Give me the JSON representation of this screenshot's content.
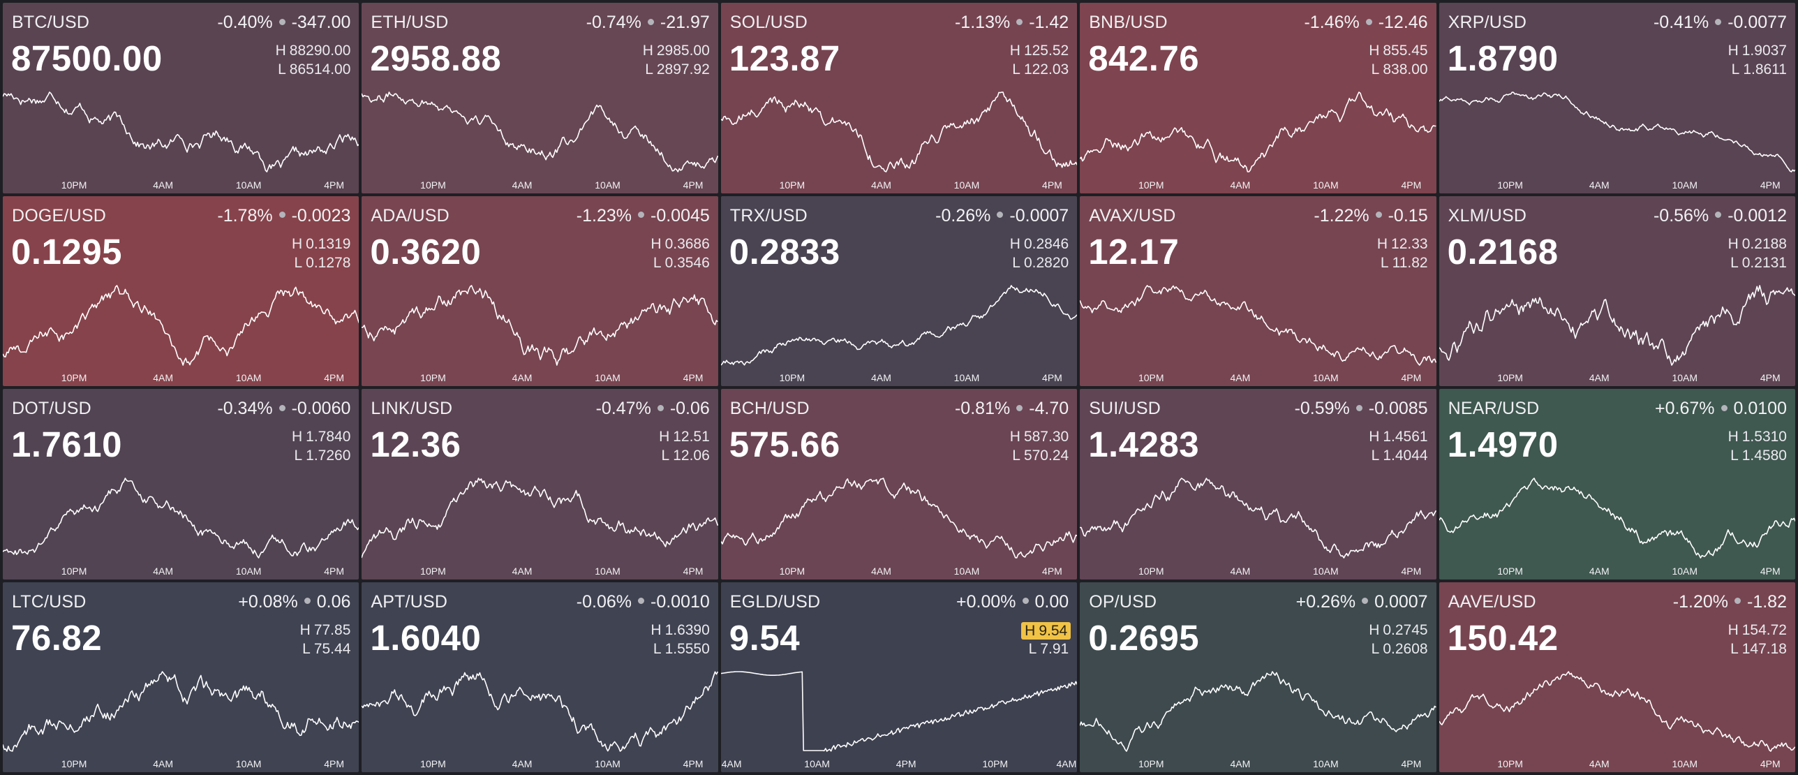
{
  "colors": {
    "page_background": "#1e1f24",
    "tile_neutral": "#4e4658",
    "tile_down": "#7c4550",
    "tile_strong_down": "#87434b",
    "tile_flat": "#3e4150",
    "tile_up": "#3e5650",
    "high_flag": "#f0c246"
  },
  "tiles": [
    {
      "symbol": "BTC/USD",
      "change_pct": "-0.40%",
      "change_abs": "-347.00",
      "price": "87500.00",
      "high": "88290.00",
      "low": "86514.00",
      "color": "#5a4452",
      "ticks": [
        "10PM",
        "4AM",
        "10AM",
        "4PM"
      ]
    },
    {
      "symbol": "ETH/USD",
      "change_pct": "-0.74%",
      "change_abs": "-21.97",
      "price": "2958.88",
      "high": "2985.00",
      "low": "2897.92",
      "color": "#674754",
      "ticks": [
        "10PM",
        "4AM",
        "10AM",
        "4PM"
      ]
    },
    {
      "symbol": "SOL/USD",
      "change_pct": "-1.13%",
      "change_abs": "-1.42",
      "price": "123.87",
      "high": "125.52",
      "low": "122.03",
      "color": "#764451",
      "ticks": [
        "10PM",
        "4AM",
        "10AM",
        "4PM"
      ]
    },
    {
      "symbol": "BNB/USD",
      "change_pct": "-1.46%",
      "change_abs": "-12.46",
      "price": "842.76",
      "high": "855.45",
      "low": "838.00",
      "color": "#7e444f",
      "ticks": [
        "10PM",
        "4AM",
        "10AM",
        "4PM"
      ]
    },
    {
      "symbol": "XRP/USD",
      "change_pct": "-0.41%",
      "change_abs": "-0.0077",
      "price": "1.8790",
      "high": "1.9037",
      "low": "1.8611",
      "color": "#594453",
      "ticks": [
        "10PM",
        "4AM",
        "10AM",
        "4PM"
      ]
    },
    {
      "symbol": "DOGE/USD",
      "change_pct": "-1.78%",
      "change_abs": "-0.0023",
      "price": "0.1295",
      "high": "0.1319",
      "low": "0.1278",
      "color": "#87434b",
      "ticks": [
        "10PM",
        "4AM",
        "10AM",
        "4PM"
      ]
    },
    {
      "symbol": "ADA/USD",
      "change_pct": "-1.23%",
      "change_abs": "-0.0045",
      "price": "0.3620",
      "high": "0.3686",
      "low": "0.3546",
      "color": "#784551",
      "ticks": [
        "10PM",
        "4AM",
        "10AM",
        "4PM"
      ]
    },
    {
      "symbol": "TRX/USD",
      "change_pct": "-0.26%",
      "change_abs": "-0.0007",
      "price": "0.2833",
      "high": "0.2846",
      "low": "0.2820",
      "color": "#4a4452",
      "ticks": [
        "10PM",
        "4AM",
        "10AM",
        "4PM"
      ]
    },
    {
      "symbol": "AVAX/USD",
      "change_pct": "-1.22%",
      "change_abs": "-0.15",
      "price": "12.17",
      "high": "12.33",
      "low": "11.82",
      "color": "#774551",
      "ticks": [
        "10PM",
        "4AM",
        "10AM",
        "4PM"
      ]
    },
    {
      "symbol": "XLM/USD",
      "change_pct": "-0.56%",
      "change_abs": "-0.0012",
      "price": "0.2168",
      "high": "0.2188",
      "low": "0.2131",
      "color": "#5f4554",
      "ticks": [
        "10PM",
        "4AM",
        "10AM",
        "4PM"
      ]
    },
    {
      "symbol": "DOT/USD",
      "change_pct": "-0.34%",
      "change_abs": "-0.0060",
      "price": "1.7610",
      "high": "1.7840",
      "low": "1.7260",
      "color": "#524453",
      "ticks": [
        "10PM",
        "4AM",
        "10AM",
        "4PM"
      ]
    },
    {
      "symbol": "LINK/USD",
      "change_pct": "-0.47%",
      "change_abs": "-0.06",
      "price": "12.36",
      "high": "12.51",
      "low": "12.06",
      "color": "#5c4554",
      "ticks": [
        "10PM",
        "4AM",
        "10AM",
        "4PM"
      ]
    },
    {
      "symbol": "BCH/USD",
      "change_pct": "-0.81%",
      "change_abs": "-4.70",
      "price": "575.66",
      "high": "587.30",
      "low": "570.24",
      "color": "#6b4554",
      "ticks": [
        "10PM",
        "4AM",
        "10AM",
        "4PM"
      ]
    },
    {
      "symbol": "SUI/USD",
      "change_pct": "-0.59%",
      "change_abs": "-0.0085",
      "price": "1.4283",
      "high": "1.4561",
      "low": "1.4044",
      "color": "#604555",
      "ticks": [
        "10PM",
        "4AM",
        "10AM",
        "4PM"
      ]
    },
    {
      "symbol": "NEAR/USD",
      "change_pct": "+0.67%",
      "change_abs": "0.0100",
      "price": "1.4970",
      "high": "1.5310",
      "low": "1.4580",
      "color": "#3f5850",
      "ticks": [
        "10PM",
        "4AM",
        "10AM",
        "4PM"
      ]
    },
    {
      "symbol": "LTC/USD",
      "change_pct": "+0.08%",
      "change_abs": "0.06",
      "price": "76.82",
      "high": "77.85",
      "low": "75.44",
      "color": "#3f4352",
      "ticks": [
        "10PM",
        "4AM",
        "10AM",
        "4PM"
      ]
    },
    {
      "symbol": "APT/USD",
      "change_pct": "-0.06%",
      "change_abs": "-0.0010",
      "price": "1.6040",
      "high": "1.6390",
      "low": "1.5550",
      "color": "#404352",
      "ticks": [
        "10PM",
        "4AM",
        "10AM",
        "4PM"
      ]
    },
    {
      "symbol": "EGLD/USD",
      "change_pct": "+0.00%",
      "change_abs": "0.00",
      "price": "9.54",
      "high": "9.54",
      "low": "7.91",
      "color": "#3e4150",
      "high_flag": true,
      "ticks": [
        "4AM",
        "10AM",
        "4PM",
        "10PM",
        "4AM"
      ]
    },
    {
      "symbol": "OP/USD",
      "change_pct": "+0.26%",
      "change_abs": "0.0007",
      "price": "0.2695",
      "high": "0.2745",
      "low": "0.2608",
      "color": "#3e4a4e",
      "ticks": [
        "10PM",
        "4AM",
        "10AM",
        "4PM"
      ]
    },
    {
      "symbol": "AAVE/USD",
      "change_pct": "-1.20%",
      "change_abs": "-1.82",
      "price": "150.42",
      "high": "154.72",
      "low": "147.18",
      "color": "#774551",
      "ticks": [
        "10PM",
        "4AM",
        "10AM",
        "4PM"
      ]
    }
  ]
}
